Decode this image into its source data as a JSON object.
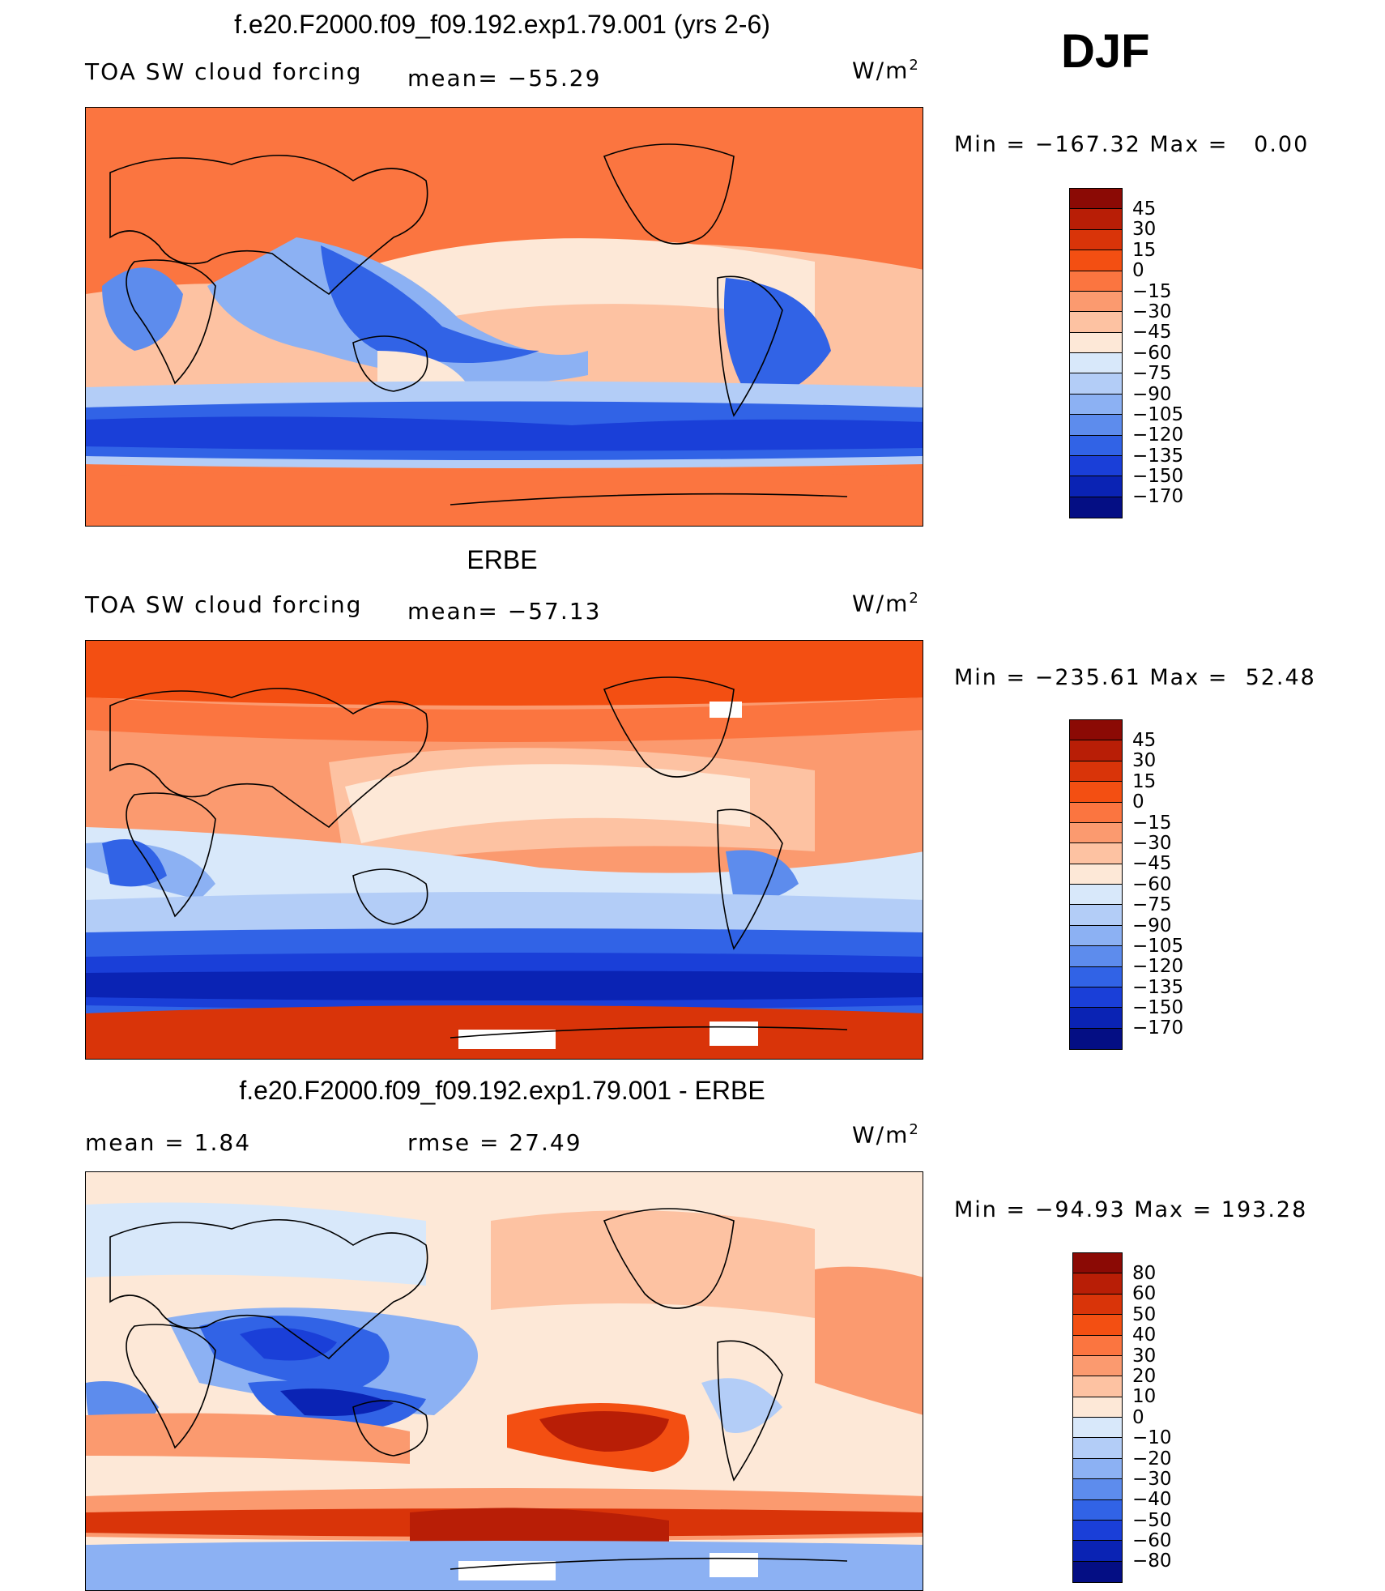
{
  "season": "DJF",
  "panels": [
    {
      "id": "model",
      "title": "f.e20.F2000.f09_f09.192.exp1.79.001 (yrs 2-6)",
      "left_label": "TOA SW cloud forcing",
      "center_label": "mean= −55.29",
      "units": "W/m",
      "units_exp": "2",
      "minmax": "Min = −167.32 Max =   0.00",
      "colorbar": {
        "ticks": [
          "45",
          "30",
          "15",
          "0",
          "−15",
          "−30",
          "−45",
          "−60",
          "−75",
          "−90",
          "−105",
          "−120",
          "−135",
          "−150",
          "−170"
        ],
        "colors": [
          "#8b0a05",
          "#b81e06",
          "#d93409",
          "#f34f12",
          "#fb7540",
          "#fb9a6f",
          "#fdc2a2",
          "#fde8d7",
          "#d8e8fa",
          "#b3cdf7",
          "#8cb1f3",
          "#5d8ced",
          "#3163e6",
          "#1a3fd8",
          "#0a23b4",
          "#040e84"
        ]
      }
    },
    {
      "id": "obs",
      "title": "ERBE",
      "left_label": "TOA SW cloud forcing",
      "center_label": "mean= −57.13",
      "units": "W/m",
      "units_exp": "2",
      "minmax": "Min = −235.61 Max =  52.48",
      "colorbar": {
        "ticks": [
          "45",
          "30",
          "15",
          "0",
          "−15",
          "−30",
          "−45",
          "−60",
          "−75",
          "−90",
          "−105",
          "−120",
          "−135",
          "−150",
          "−170"
        ],
        "colors": [
          "#8b0a05",
          "#b81e06",
          "#d93409",
          "#f34f12",
          "#fb7540",
          "#fb9a6f",
          "#fdc2a2",
          "#fde8d7",
          "#d8e8fa",
          "#b3cdf7",
          "#8cb1f3",
          "#5d8ced",
          "#3163e6",
          "#1a3fd8",
          "#0a23b4",
          "#040e84"
        ]
      }
    },
    {
      "id": "diff",
      "title": "f.e20.F2000.f09_f09.192.exp1.79.001 - ERBE",
      "left_label": "mean =   1.84",
      "center_label": "rmse =  27.49",
      "units": "W/m",
      "units_exp": "2",
      "minmax": "Min = −94.93 Max = 193.28",
      "colorbar": {
        "ticks": [
          "80",
          "60",
          "50",
          "40",
          "30",
          "20",
          "10",
          "0",
          "−10",
          "−20",
          "−30",
          "−40",
          "−50",
          "−60",
          "−80"
        ],
        "colors": [
          "#8b0a05",
          "#b81e06",
          "#d93409",
          "#f34f12",
          "#fb7540",
          "#fb9a6f",
          "#fdc2a2",
          "#fde8d7",
          "#d8e8fa",
          "#b3cdf7",
          "#8cb1f3",
          "#5d8ced",
          "#3163e6",
          "#1a3fd8",
          "#0a23b4",
          "#040e84"
        ]
      }
    }
  ]
}
